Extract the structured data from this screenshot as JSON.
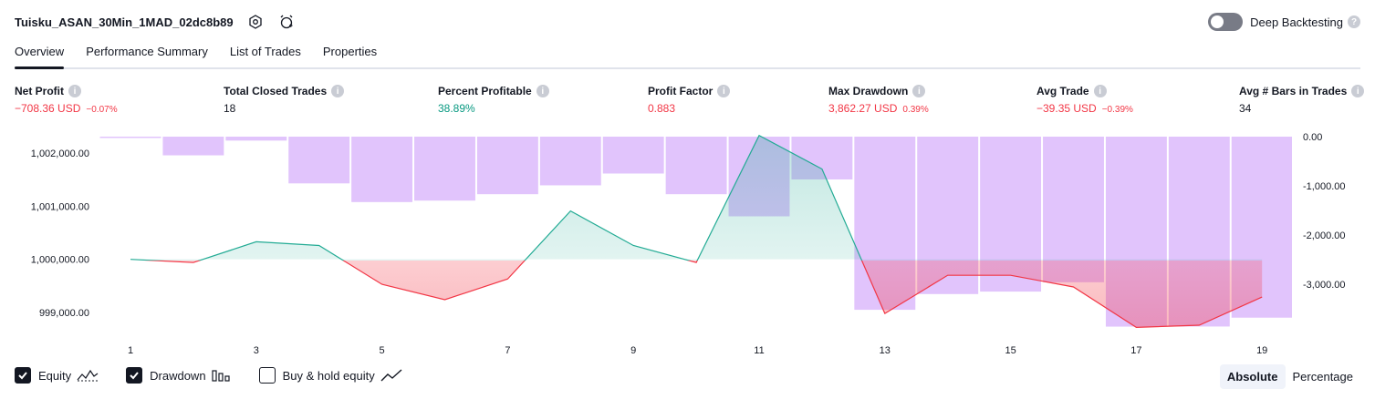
{
  "header": {
    "title": "Tuisku_ASAN_30Min_1MAD_02dc8b89",
    "deep_backtesting_label": "Deep Backtesting",
    "deep_backtesting_enabled": false
  },
  "tabs": [
    {
      "label": "Overview",
      "active": true
    },
    {
      "label": "Performance Summary",
      "active": false
    },
    {
      "label": "List of Trades",
      "active": false
    },
    {
      "label": "Properties",
      "active": false
    }
  ],
  "metrics": [
    {
      "label": "Net Profit",
      "value": "−708.36 USD",
      "pct": "−0.07%",
      "color": "#f23645"
    },
    {
      "label": "Total Closed Trades",
      "value": "18",
      "pct": "",
      "color": "#131722"
    },
    {
      "label": "Percent Profitable",
      "value": "38.89%",
      "pct": "",
      "color": "#089981"
    },
    {
      "label": "Profit Factor",
      "value": "0.883",
      "pct": "",
      "color": "#f23645"
    },
    {
      "label": "Max Drawdown",
      "value": "3,862.27 USD",
      "pct": "0.39%",
      "color": "#f23645"
    },
    {
      "label": "Avg Trade",
      "value": "−39.35 USD",
      "pct": "−0.39%",
      "color": "#f23645"
    },
    {
      "label": "Avg # Bars in Trades",
      "value": "34",
      "pct": "",
      "color": "#131722"
    }
  ],
  "chart_data": {
    "type": "line",
    "x": [
      1,
      2,
      3,
      4,
      5,
      6,
      7,
      8,
      9,
      10,
      11,
      12,
      13,
      14,
      15,
      16,
      17,
      18,
      19
    ],
    "x_tick_labels": [
      "1",
      "3",
      "5",
      "7",
      "9",
      "11",
      "13",
      "15",
      "17",
      "19"
    ],
    "left_axis": {
      "ticks": [
        "1,002,000.00",
        "1,001,000.00",
        "1,000,000.00",
        "999,000.00"
      ],
      "ylim": [
        998750,
        1002350
      ],
      "baseline": 1000000
    },
    "right_axis": {
      "ticks": [
        "0.00",
        "-1,000.00",
        "-2,000.00",
        "-3,000.00"
      ],
      "ylim": [
        -4300,
        0
      ]
    },
    "series": [
      {
        "name": "Equity",
        "axis": "left",
        "values": [
          1000000,
          999940,
          1000330,
          1000260,
          999530,
          999240,
          999630,
          1000910,
          1000260,
          999940,
          1002330,
          1001700,
          998980,
          999700,
          999700,
          999480,
          998720,
          998760,
          999290
        ]
      },
      {
        "name": "Drawdown",
        "axis": "right",
        "values": [
          0,
          -380,
          -80,
          -950,
          -1330,
          -1300,
          -1170,
          -990,
          -750,
          -1170,
          -1620,
          -870,
          -3520,
          -3200,
          -3150,
          -2960,
          -3862.27,
          -3860,
          -3680
        ]
      }
    ],
    "colors": {
      "equity_up": "#22ab94",
      "equity_down": "#f23645",
      "drawdown": "#e1c4fc"
    }
  },
  "legend": [
    {
      "label": "Equity",
      "checked": true,
      "icon": "equity-line-icon"
    },
    {
      "label": "Drawdown",
      "checked": true,
      "icon": "drawdown-bars-icon"
    },
    {
      "label": "Buy & hold equity",
      "checked": false,
      "icon": "buy-hold-line-icon"
    }
  ],
  "scale_buttons": [
    {
      "label": "Absolute",
      "active": true
    },
    {
      "label": "Percentage",
      "active": false
    }
  ]
}
